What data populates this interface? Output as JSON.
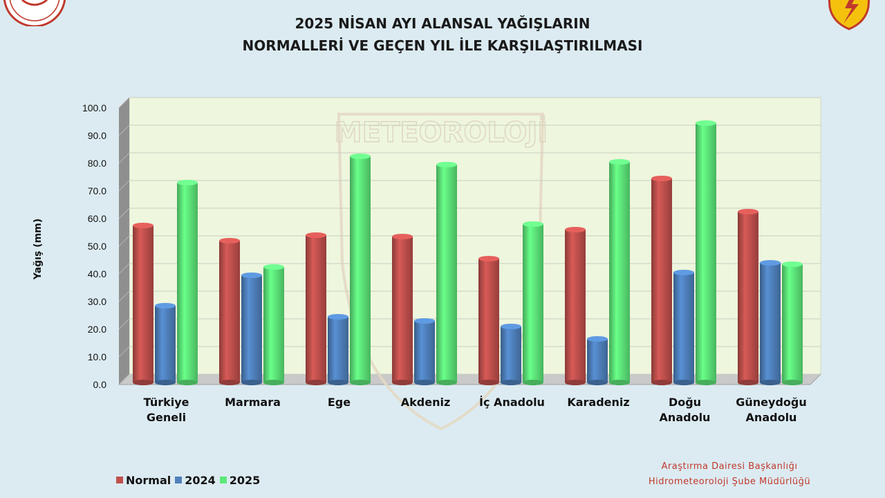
{
  "header": {
    "title_line1": "2025 NİSAN AYI ALANSAL YAĞIŞLARIN",
    "title_line2": "NORMALLERİ VE GEÇEN YIL İLE KARŞILAŞTIRILMASI"
  },
  "footer": {
    "line1": "Araştırma Dairesi Başkanlığı",
    "line2": "Hidrometeoroloji Şube Müdürlüğü"
  },
  "watermark": {
    "icon": "meteoroloji-watermark",
    "text": "METEOROLOJİ"
  },
  "logos": {
    "left": "ministry-seal-logo",
    "right": "meteorology-emblem-logo"
  },
  "chart_data": {
    "type": "bar",
    "ylabel": "Yağış (mm)",
    "ylim": [
      0,
      100
    ],
    "yticks": [
      "0.0",
      "10.0",
      "20.0",
      "30.0",
      "40.0",
      "50.0",
      "60.0",
      "70.0",
      "80.0",
      "90.0",
      "100.0"
    ],
    "grid": true,
    "legend_position": "bottom-left",
    "categories": [
      [
        "Türkiye",
        "Geneli"
      ],
      [
        "Marmara"
      ],
      [
        "Ege"
      ],
      [
        "Akdeniz"
      ],
      [
        "İç Anadolu"
      ],
      [
        "Karadeniz"
      ],
      [
        "Doğu",
        "Anadolu"
      ],
      [
        "Güneydoğu",
        "Anadolu"
      ]
    ],
    "series": [
      {
        "name": "Normal",
        "color": "#c0504d",
        "values": [
          57.5,
          52.0,
          54.0,
          53.5,
          45.5,
          56.0,
          74.5,
          62.5
        ]
      },
      {
        "name": "2024",
        "color": "#4f81bd",
        "values": [
          28.5,
          39.5,
          24.5,
          23.0,
          21.0,
          16.5,
          40.5,
          44.0
        ]
      },
      {
        "name": "2025",
        "color": "#5ee87a",
        "values": [
          73.0,
          42.5,
          82.5,
          79.5,
          58.0,
          80.5,
          94.5,
          43.5
        ]
      }
    ]
  }
}
